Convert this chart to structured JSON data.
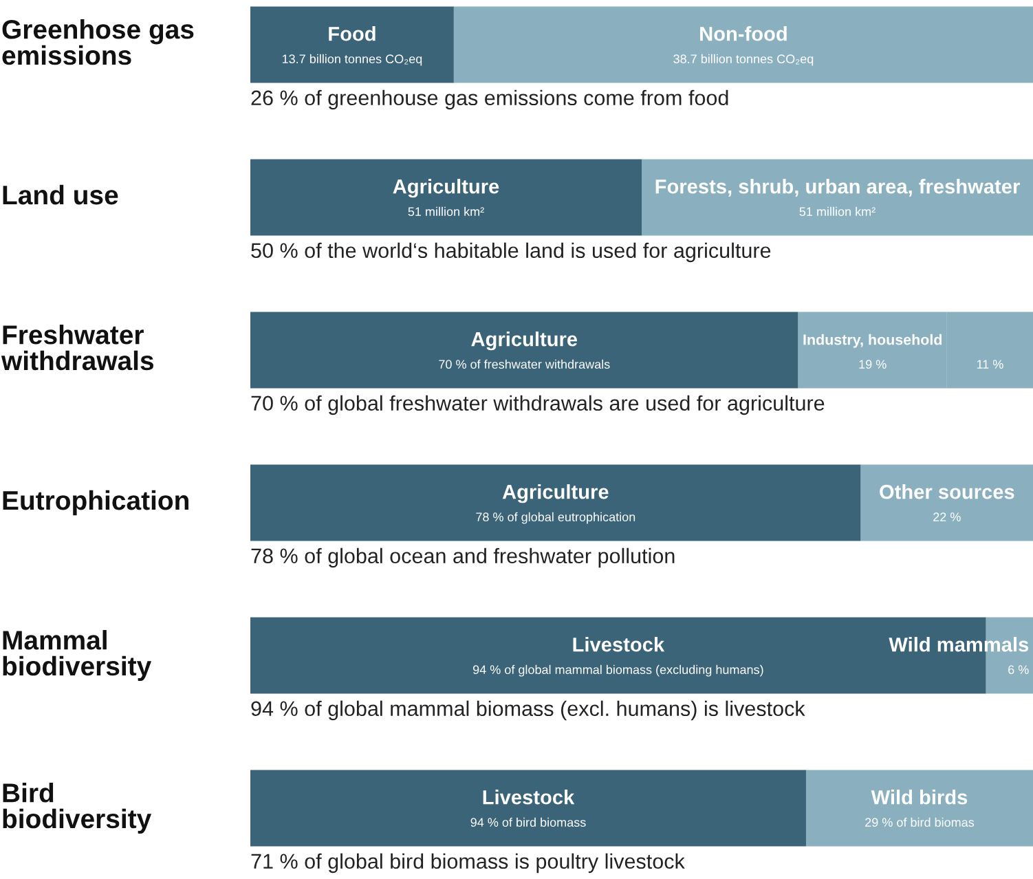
{
  "chart_data": {
    "type": "bar",
    "orientation": "horizontal",
    "stacked": true,
    "categories": [
      "Greenhose gas\nemissions",
      "Land use",
      "Freshwater\nwithdrawals",
      "Eutrophication",
      "Mammal\nbiodiversity",
      "Bird\nbiodiversity"
    ],
    "series": [
      {
        "color": "#3b6478",
        "values": [
          26,
          50,
          70,
          78,
          94,
          71
        ],
        "value_labels": [
          "Food\n13.7 billion tonnes CO₂eq",
          "Agriculture\n51 million km²",
          "Agriculture\n70 % of freshwater withdrawals",
          "Agriculture\n78 % of global eutrophication",
          "Livestock\n94 % of global mammal biomass (excluding humans)",
          "Livestock\n94 % of bird biomass"
        ]
      },
      {
        "color": "#8ab0bf",
        "values": [
          74,
          50,
          19,
          22,
          6,
          29
        ],
        "value_labels": [
          "Non-food\n38.7 billion tonnes CO₂eq",
          "Forests, shrub, urban area, freshwater\n51 million km²",
          "Industry, household\n19 %",
          "Other sources\n22 %",
          "Wild mammals\n6 %",
          "Wild birds\n29 % of bird biomas"
        ]
      },
      {
        "color": "#8ab0bf",
        "values": [
          null,
          null,
          11,
          null,
          null,
          null
        ],
        "value_labels": [
          null,
          null,
          "11 %",
          null,
          null,
          null
        ]
      }
    ],
    "annotations": [
      "26 % of greenhouse gas emissions come from food",
      "50 % of the world‘s habitable land is used for agriculture",
      "70 % of global freshwater withdrawals are used for agriculture",
      "78 % of global ocean and freshwater pollution",
      "94 % of global mammal biomass (excl. humans) is livestock",
      "71 % of global bird biomass is poultry livestock"
    ]
  }
}
